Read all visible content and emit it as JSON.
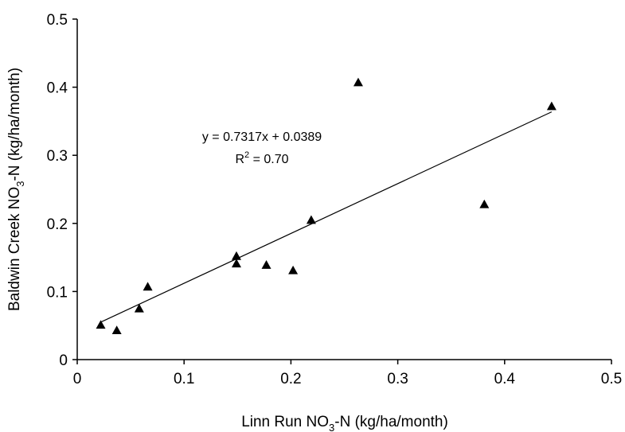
{
  "chart_data": {
    "type": "scatter",
    "title": "",
    "xlabel": {
      "pre": "Linn Run NO",
      "sub": "3",
      "post": "-N (kg/ha/month)"
    },
    "ylabel": {
      "pre": "Baldwin Creek NO",
      "sub": "3",
      "post": "-N (kg/ha/month)"
    },
    "xlim": [
      0,
      0.5
    ],
    "ylim": [
      0,
      0.5
    ],
    "x_ticks": [
      "0",
      "0.1",
      "0.2",
      "0.3",
      "0.4",
      "0.5"
    ],
    "y_ticks": [
      "0",
      "0.1",
      "0.2",
      "0.3",
      "0.4",
      "0.5"
    ],
    "grid": false,
    "legend": "none",
    "marker": "triangle",
    "marker_color": "#000000",
    "points": [
      {
        "x": 0.022,
        "y": 0.051
      },
      {
        "x": 0.037,
        "y": 0.043
      },
      {
        "x": 0.058,
        "y": 0.075
      },
      {
        "x": 0.066,
        "y": 0.107
      },
      {
        "x": 0.149,
        "y": 0.152
      },
      {
        "x": 0.149,
        "y": 0.141
      },
      {
        "x": 0.177,
        "y": 0.139
      },
      {
        "x": 0.202,
        "y": 0.131
      },
      {
        "x": 0.219,
        "y": 0.205
      },
      {
        "x": 0.263,
        "y": 0.407
      },
      {
        "x": 0.381,
        "y": 0.228
      },
      {
        "x": 0.444,
        "y": 0.372
      }
    ],
    "trendline": {
      "slope": 0.7317,
      "intercept": 0.0389,
      "x_range": [
        0.022,
        0.444
      ]
    },
    "annotations": {
      "equation": "y = 0.7317x + 0.0389",
      "r2_pre": "R",
      "r2_sup": "2",
      "r2_post": " = 0.70"
    }
  }
}
